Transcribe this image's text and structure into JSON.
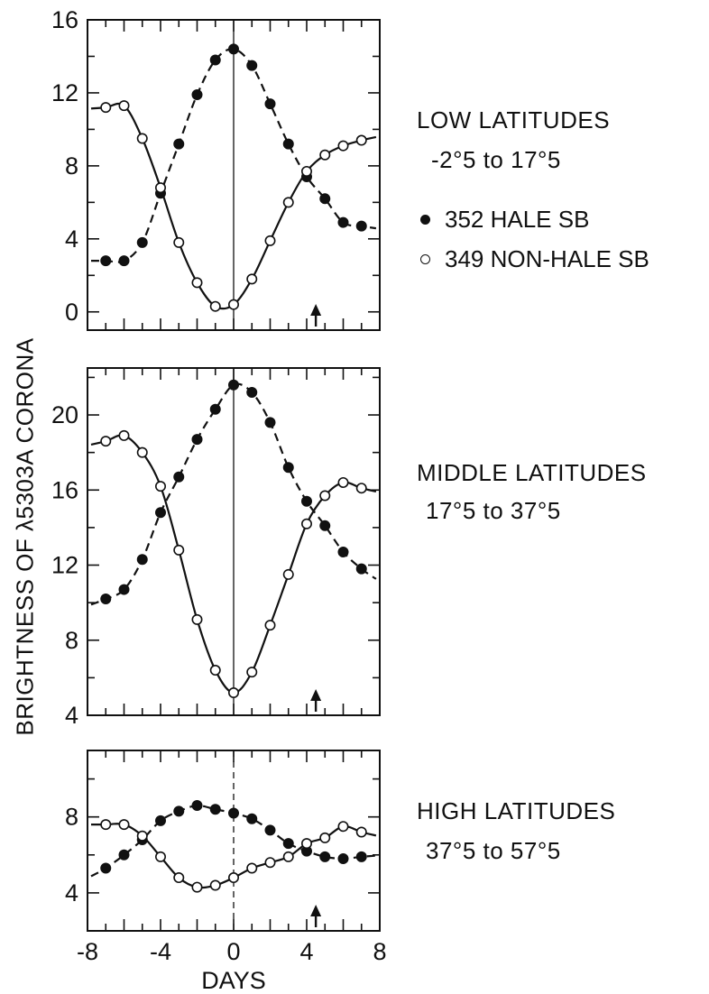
{
  "chart_data": {
    "type": "line",
    "ylabel": "BRIGHTNESS OF λ5303A CORONA",
    "xlabel": "DAYS",
    "xlim": [
      -8,
      8
    ],
    "xticks": [
      -8,
      -4,
      0,
      4,
      8
    ],
    "legend": [
      {
        "name": "352 HALE SB",
        "marker": "filled",
        "linestyle": "dashed"
      },
      {
        "name": "349 NON-HALE SB",
        "marker": "open",
        "linestyle": "solid"
      }
    ],
    "panels": [
      {
        "label_line1": "LOW LATITUDES",
        "label_line2": "-2°5  to 17°5",
        "ylim": [
          -1,
          16
        ],
        "yticks": [
          0,
          4,
          8,
          12,
          16
        ],
        "arrow_x": 4.5,
        "x": [
          -7,
          -6,
          -5,
          -4,
          -3,
          -2,
          -1,
          0,
          1,
          2,
          3,
          4,
          5,
          6,
          7
        ],
        "series": [
          {
            "name": "352 HALE SB",
            "values": [
              2.8,
              2.8,
              3.8,
              6.5,
              9.2,
              11.9,
              13.8,
              14.4,
              13.5,
              11.4,
              9.2,
              7.4,
              6.2,
              4.9,
              4.7
            ]
          },
          {
            "name": "349 NON-HALE SB",
            "values": [
              11.2,
              11.3,
              9.5,
              6.8,
              3.8,
              1.6,
              0.3,
              0.4,
              1.8,
              3.9,
              6.0,
              7.7,
              8.6,
              9.1,
              9.4
            ]
          }
        ]
      },
      {
        "label_line1": "MIDDLE LATITUDES",
        "label_line2": "17°5  to 37°5",
        "ylim": [
          4,
          22.5
        ],
        "yticks": [
          4,
          8,
          12,
          16,
          20
        ],
        "arrow_x": 4.5,
        "x": [
          -7,
          -6,
          -5,
          -4,
          -3,
          -2,
          -1,
          0,
          1,
          2,
          3,
          4,
          5,
          6,
          7
        ],
        "series": [
          {
            "name": "352 HALE SB",
            "values": [
              10.2,
              10.7,
              12.3,
              14.8,
              16.7,
              18.7,
              20.3,
              21.6,
              21.2,
              19.6,
              17.2,
              15.4,
              14.1,
              12.7,
              11.8
            ]
          },
          {
            "name": "349 NON-HALE SB",
            "values": [
              18.6,
              18.9,
              18.0,
              16.2,
              12.8,
              9.1,
              6.4,
              5.2,
              6.3,
              8.8,
              11.5,
              14.2,
              15.7,
              16.4,
              16.1
            ]
          }
        ]
      },
      {
        "label_line1": "HIGH LATITUDES",
        "label_line2": "37°5  to 57°5",
        "ylim": [
          2,
          11.5
        ],
        "yticks": [
          4,
          8
        ],
        "arrow_x": 4.5,
        "x": [
          -7,
          -6,
          -5,
          -4,
          -3,
          -2,
          -1,
          0,
          1,
          2,
          3,
          4,
          5,
          6,
          7
        ],
        "series": [
          {
            "name": "352 HALE SB",
            "values": [
              5.3,
              6.0,
              6.8,
              7.8,
              8.3,
              8.6,
              8.4,
              8.2,
              7.9,
              7.3,
              6.6,
              6.2,
              5.9,
              5.8,
              5.9
            ]
          },
          {
            "name": "349 NON-HALE SB",
            "values": [
              7.6,
              7.6,
              7.0,
              5.9,
              4.8,
              4.3,
              4.4,
              4.8,
              5.3,
              5.6,
              5.9,
              6.6,
              6.9,
              7.5,
              7.2
            ]
          }
        ]
      }
    ]
  }
}
